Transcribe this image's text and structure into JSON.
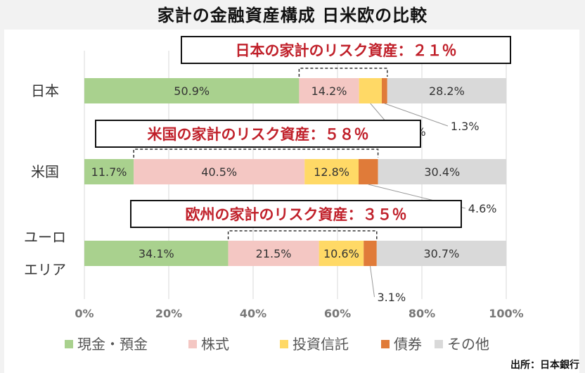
{
  "chart_data": {
    "type": "bar",
    "orientation": "horizontal",
    "stacked": "percent",
    "title": "家計の金融資産構成 日米欧の比較",
    "categories": [
      "日本",
      "米国",
      "ユーロ\nエリア"
    ],
    "series": [
      {
        "name": "現金・預金",
        "color": "#a9d18e",
        "values": [
          50.9,
          11.7,
          34.1
        ]
      },
      {
        "name": "株式",
        "color": "#f4c7c3",
        "values": [
          14.2,
          40.5,
          21.5
        ]
      },
      {
        "name": "投資信託",
        "color": "#ffd966",
        "values": [
          5.4,
          12.8,
          10.6
        ]
      },
      {
        "name": "債券",
        "color": "#e07b39",
        "values": [
          1.3,
          4.6,
          3.1
        ]
      },
      {
        "name": "その他",
        "color": "#d9d9d9",
        "values": [
          28.2,
          30.4,
          30.7
        ]
      }
    ],
    "xlim": [
      0,
      100
    ],
    "x_ticks": [
      "0%",
      "20%",
      "40%",
      "60%",
      "80%",
      "100%"
    ],
    "grid": "vertical",
    "legend_position": "bottom",
    "annotations": [
      "日本の家計のリスク資産：２１％",
      "米国の家計のリスク資産：５８％",
      "欧州の家計のリスク資産：３５％"
    ],
    "source": "出所：日本銀行"
  }
}
